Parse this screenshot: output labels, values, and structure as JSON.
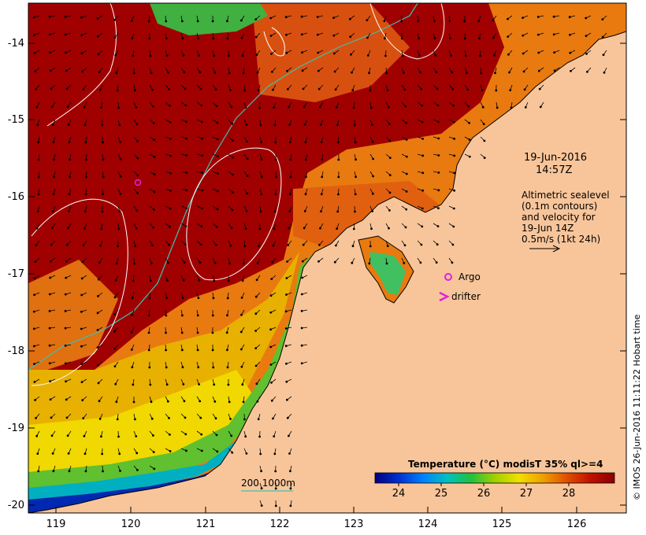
{
  "map": {
    "x_ticks": [
      "119",
      "120",
      "121",
      "122",
      "123",
      "124",
      "125",
      "126"
    ],
    "y_ticks": [
      "-14",
      "-15",
      "-16",
      "-17",
      "-18",
      "-19",
      "-20"
    ],
    "date_label": "19-Jun-2016",
    "time_label": "14:57Z",
    "info_lines": [
      "Altimetric sealevel",
      "(0.1m contours)",
      "and velocity for",
      "19-Jun 14Z",
      "0.5m/s (1kt 24h)"
    ],
    "legend": {
      "argo_label": "Argo",
      "drifter_label": "drifter",
      "argo_color": "#e020e0",
      "drifter_color": "#e020e0"
    },
    "bathymetry_label": "200  1000m",
    "bathymetry_color": "#40c0b0",
    "colorbar": {
      "title": "Temperature (°C) modisT 35% ql>=4",
      "ticks": [
        "24",
        "25",
        "26",
        "27",
        "28"
      ],
      "colors": [
        "#000080",
        "#0030d0",
        "#0080ff",
        "#00c0c0",
        "#20c040",
        "#a0d000",
        "#f0e000",
        "#f0a000",
        "#e05000",
        "#c01000",
        "#8a0000"
      ]
    },
    "credit": "© IMOS 26-Jun-2016 11:11:22 Hobart time",
    "colors": {
      "land": "#f8c59a",
      "warm": "#a00000",
      "mid": "#e85000",
      "cool": "#f0d000",
      "cold": "#0050c0"
    }
  }
}
